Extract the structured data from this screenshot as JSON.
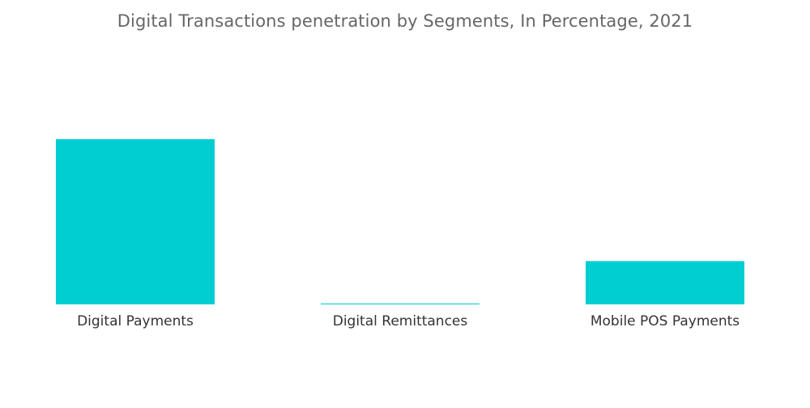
{
  "chart_data": {
    "type": "bar",
    "title": "Digital Transactions penetration by Segments, In Percentage, 2021",
    "categories": [
      "Digital Payments",
      "Digital Remittances",
      "Mobile POS Payments"
    ],
    "values": [
      75.6,
      0.4,
      19.8
    ],
    "xlabel": "",
    "ylabel": "",
    "ylim": [
      0,
      100
    ],
    "grid": false,
    "legend": "none",
    "colors": {
      "bar": "#00CED1"
    }
  }
}
